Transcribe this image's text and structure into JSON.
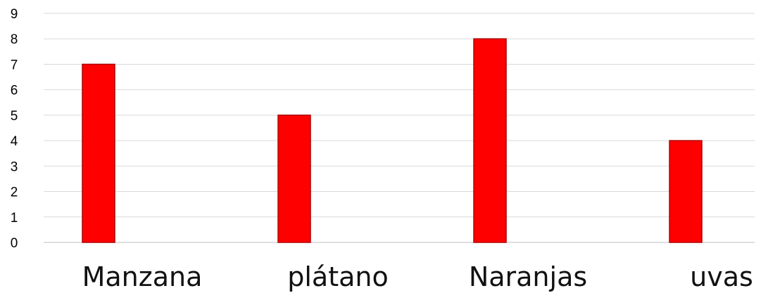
{
  "chart_data": {
    "type": "bar",
    "categories": [
      "Manzana",
      "plátano",
      "Naranjas",
      "uvas"
    ],
    "values": [
      7,
      5,
      8,
      4
    ],
    "ylim": [
      0,
      9
    ],
    "yticks": [
      0,
      1,
      2,
      3,
      4,
      5,
      6,
      7,
      8,
      9
    ],
    "grid": true,
    "legend": "none",
    "bar_color": "#ff0000",
    "bar_edge_color": "#b00000",
    "grid_color": "#d9d9d9"
  }
}
